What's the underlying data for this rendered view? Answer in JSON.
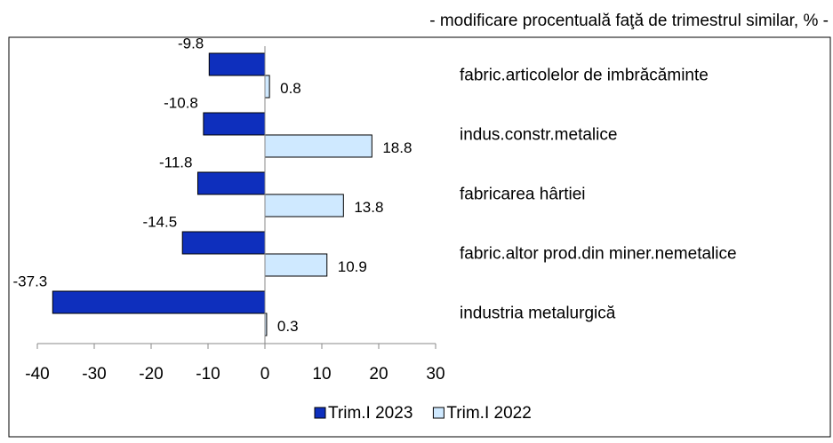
{
  "chart_data": {
    "type": "barh",
    "subtitle": "- modificare procentuală faţă de trimestrul similar, % -",
    "categories": [
      "fabric.articolelor de imbrăcăminte",
      "indus.constr.metalice",
      "fabricarea hârtiei",
      "fabric.altor prod.din miner.nemetalice",
      "industria metalurgică"
    ],
    "series": [
      {
        "name": "Trim.I 2023",
        "color": "#0e2fbd",
        "values": [
          -9.8,
          -10.8,
          -11.8,
          -14.5,
          -37.3
        ]
      },
      {
        "name": "Trim.I 2022",
        "color": "#cfe9ff",
        "values": [
          0.8,
          18.8,
          13.8,
          10.9,
          0.3
        ]
      }
    ],
    "xlim": [
      -40,
      30
    ],
    "xticks": [
      -40,
      -30,
      -20,
      -10,
      0,
      10,
      20,
      30
    ],
    "legend": "bottom"
  }
}
